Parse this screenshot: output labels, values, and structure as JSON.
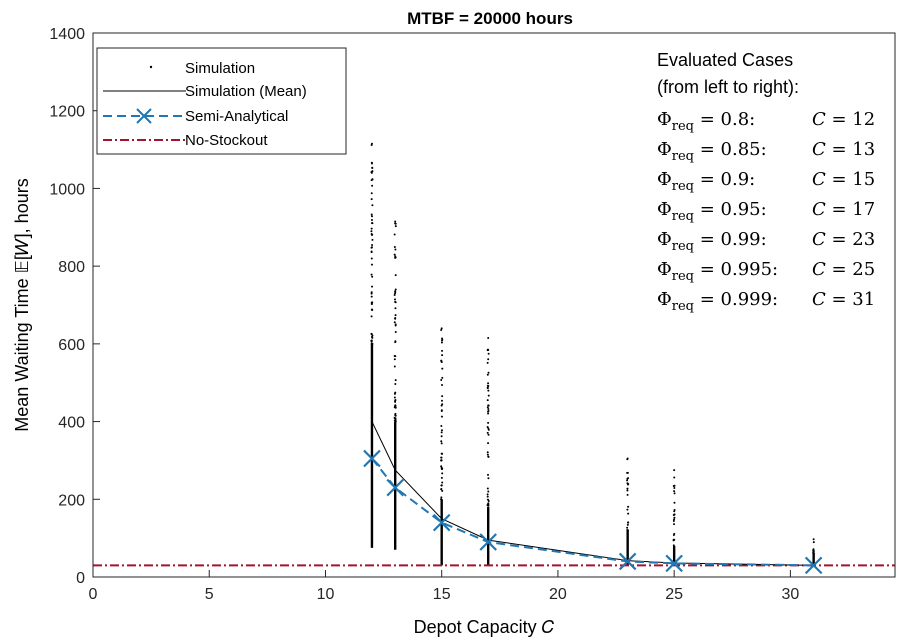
{
  "chart_data": {
    "type": "scatter",
    "title": "MTBF = 20000 hours",
    "xlabel": "Depot Capacity 𝐶",
    "ylabel": "Mean Waiting Time 𝔼[𝑊], hours",
    "xlim": [
      0,
      34.5
    ],
    "ylim": [
      0,
      1400
    ],
    "xticks": [
      0,
      5,
      10,
      15,
      20,
      25,
      30
    ],
    "yticks": [
      0,
      200,
      400,
      600,
      800,
      1000,
      1200,
      1400
    ],
    "grid": false,
    "legend_position": "top-left",
    "legend": [
      {
        "label": "Simulation",
        "style": "dot"
      },
      {
        "label": "Simulation (Mean)",
        "style": "solid-line"
      },
      {
        "label": "Semi-Analytical",
        "style": "dashed-x"
      },
      {
        "label": "No-Stockout",
        "style": "dash-dot"
      }
    ],
    "series": [
      {
        "name": "Simulation",
        "kind": "scatter-columns",
        "color": "#000000",
        "columns": [
          {
            "x": 12,
            "min": 75,
            "dense_max": 600,
            "sparse_max": 1115
          },
          {
            "x": 13,
            "min": 70,
            "dense_max": 400,
            "sparse_max": 915
          },
          {
            "x": 15,
            "min": 30,
            "dense_max": 200,
            "sparse_max": 640
          },
          {
            "x": 17,
            "min": 30,
            "dense_max": 180,
            "sparse_max": 615
          },
          {
            "x": 23,
            "min": 30,
            "dense_max": 120,
            "sparse_max": 305
          },
          {
            "x": 25,
            "min": 30,
            "dense_max": 80,
            "sparse_max": 275
          },
          {
            "x": 31,
            "min": 30,
            "dense_max": 60,
            "sparse_max": 97
          }
        ]
      },
      {
        "name": "Simulation (Mean)",
        "kind": "line",
        "color": "#000000",
        "x": [
          12,
          13,
          15,
          17,
          23,
          25,
          31
        ],
        "y": [
          400,
          275,
          150,
          95,
          42,
          36,
          30
        ]
      },
      {
        "name": "Semi-Analytical",
        "kind": "dashed-line-x-markers",
        "color": "#1f77b4",
        "x": [
          12,
          13,
          15,
          17,
          23,
          25,
          31
        ],
        "y": [
          305,
          230,
          140,
          90,
          40,
          35,
          30
        ]
      },
      {
        "name": "No-Stockout",
        "kind": "hline-dashdot",
        "color": "#a2142f",
        "y": 30
      }
    ],
    "annotation": {
      "heading": [
        "Evaluated Cases",
        "(from left to right):"
      ],
      "rows": [
        {
          "phi": "0.8",
          "c": "12"
        },
        {
          "phi": "0.85",
          "c": "13"
        },
        {
          "phi": "0.9",
          "c": "15"
        },
        {
          "phi": "0.95",
          "c": "17"
        },
        {
          "phi": "0.99",
          "c": "23"
        },
        {
          "phi": "0.995",
          "c": "25"
        },
        {
          "phi": "0.999",
          "c": "31"
        }
      ],
      "phi_symbol": "Φ",
      "phi_subscript": "req",
      "c_symbol": "𝐶"
    }
  }
}
